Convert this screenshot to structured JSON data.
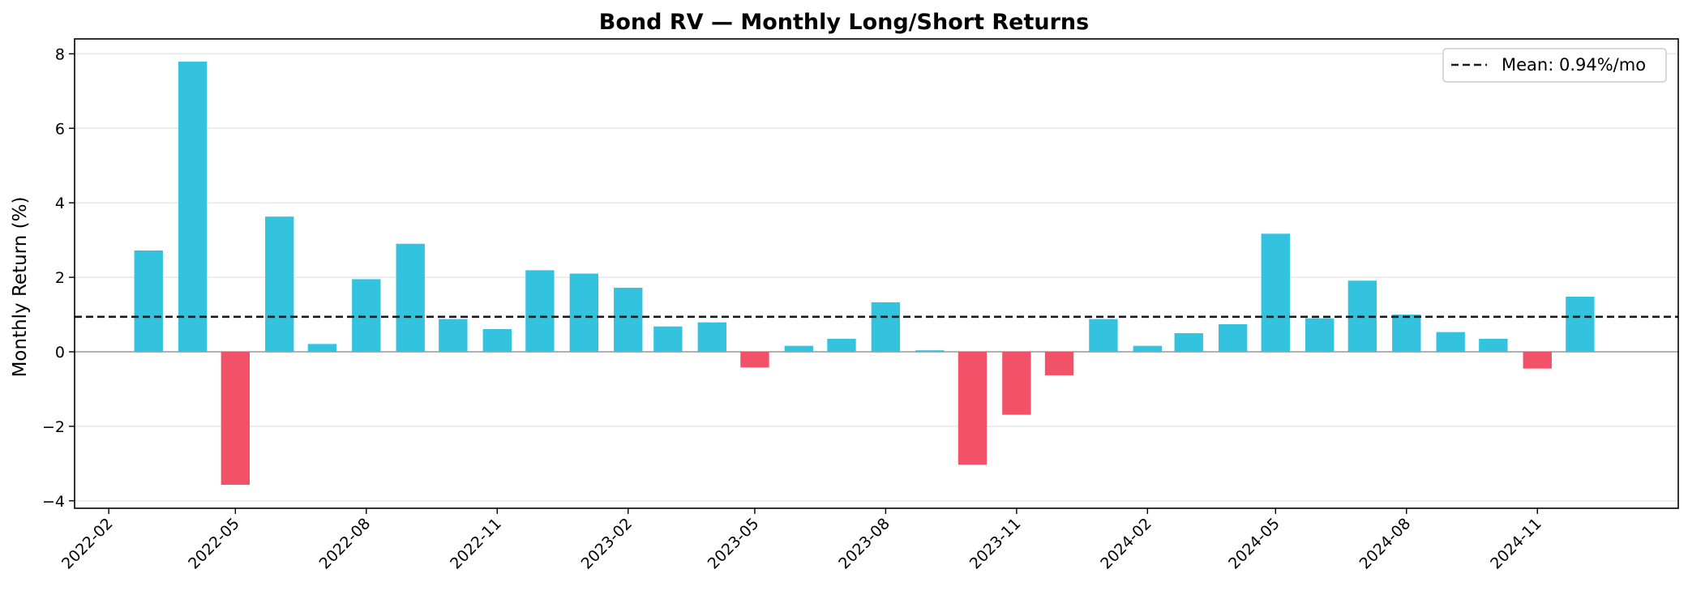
{
  "chart_data": {
    "type": "bar",
    "title": "Bond RV — Monthly Long/Short Returns",
    "xlabel": "",
    "ylabel": "Monthly Return (%)",
    "ylim": [
      -4.2,
      8.4
    ],
    "xlim": [
      "2022-01-08",
      "2025-02-08"
    ],
    "yticks": [
      -4,
      -2,
      0,
      2,
      4,
      6,
      8
    ],
    "ytick_labels": [
      "−4",
      "−2",
      "0",
      "2",
      "4",
      "6",
      "8"
    ],
    "xticks": [
      "2022-02-01",
      "2022-05-01",
      "2022-08-01",
      "2022-11-01",
      "2023-02-01",
      "2023-05-01",
      "2023-08-01",
      "2023-11-01",
      "2024-02-01",
      "2024-05-01",
      "2024-08-01",
      "2024-11-01"
    ],
    "xtick_labels": [
      "2022-02",
      "2022-05",
      "2022-08",
      "2022-11",
      "2023-02",
      "2023-05",
      "2023-08",
      "2023-11",
      "2024-02",
      "2024-05",
      "2024-08",
      "2024-11"
    ],
    "grid": "y",
    "dates": [
      "2022-03-01",
      "2022-04-01",
      "2022-05-01",
      "2022-06-01",
      "2022-07-01",
      "2022-08-01",
      "2022-09-01",
      "2022-10-01",
      "2022-11-01",
      "2022-12-01",
      "2023-01-01",
      "2023-02-01",
      "2023-03-01",
      "2023-04-01",
      "2023-05-01",
      "2023-06-01",
      "2023-07-01",
      "2023-08-01",
      "2023-09-01",
      "2023-10-01",
      "2023-11-01",
      "2023-12-01",
      "2024-01-01",
      "2024-02-01",
      "2024-03-01",
      "2024-04-01",
      "2024-05-01",
      "2024-06-01",
      "2024-07-01",
      "2024-08-01",
      "2024-09-01",
      "2024-10-01",
      "2024-11-01",
      "2024-12-01"
    ],
    "values": [
      2.72,
      7.79,
      -3.57,
      3.63,
      0.21,
      1.95,
      2.9,
      0.88,
      0.61,
      2.19,
      2.1,
      1.72,
      0.68,
      0.79,
      -0.42,
      0.16,
      0.35,
      1.33,
      0.04,
      -3.03,
      -1.69,
      -0.63,
      0.88,
      0.16,
      0.5,
      0.74,
      3.17,
      0.9,
      1.91,
      1.0,
      0.53,
      0.35,
      -0.45,
      1.48
    ],
    "mean": 0.94,
    "legend": {
      "position": "top-right",
      "label": "Mean: 0.94%/mo"
    },
    "colors": {
      "positive": "#33c3df",
      "negative": "#f25267",
      "mean_line": "#1a1a1a",
      "grid": "#e6e6e6",
      "zero_line": "#8a8a8a"
    }
  }
}
